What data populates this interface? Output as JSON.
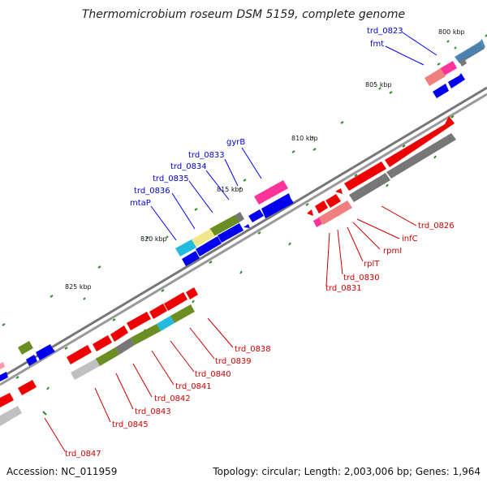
{
  "title": "Thermomicrobium roseum DSM 5159, complete genome",
  "accession": "Accession: NC_011959",
  "summary": "Topology: circular; Length: 2,003,006 bp; Genes: 1,964",
  "kbp_labels": [
    "800 kbp",
    "805 kbp",
    "810 kbp",
    "815 kbp",
    "820 kbp",
    "825 kbp"
  ],
  "blue_labels": [
    "trd_0823",
    "fmt",
    "gyrB",
    "trd_0833",
    "trd_0834",
    "trd_0835",
    "trd_0836",
    "mtaP"
  ],
  "red_labels": [
    "trd_0826",
    "infC",
    "rpmI",
    "rplT",
    "trd_0830",
    "trd_0831",
    "trd_0838",
    "trd_0839",
    "trd_0840",
    "trd_0841",
    "trd_0842",
    "trd_0843",
    "trd_0845",
    "trd_0847"
  ],
  "colors": {
    "forward": "#ff0000",
    "reverse": "#0000ee",
    "backbone": "#808080",
    "pink": "#ff3399",
    "olive": "#6b8e23",
    "cyan": "#22bbdd",
    "khaki": "#f0e68c",
    "salmon": "#f08080",
    "tick": "#2e8b2e"
  }
}
